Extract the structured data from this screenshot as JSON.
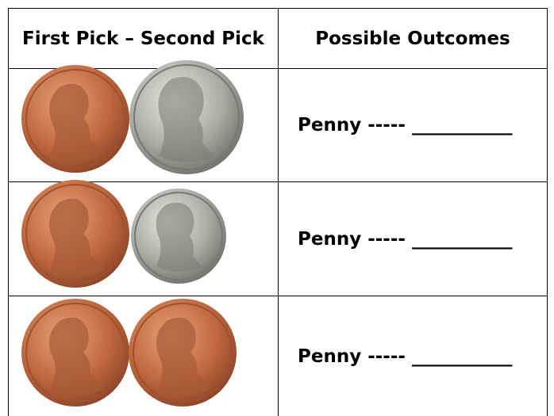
{
  "table": {
    "header": [
      "First Pick – Second Pick",
      "Possible Outcomes"
    ],
    "rows": [
      {
        "outcome": "Penny ----- ___________"
      },
      {
        "outcome": "Penny ----- ___________"
      },
      {
        "outcome": "Penny ----- ___________"
      }
    ]
  }
}
